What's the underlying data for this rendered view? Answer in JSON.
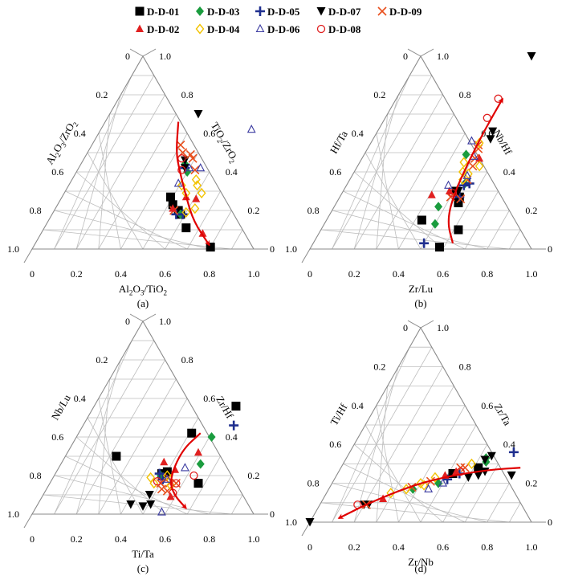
{
  "legend": {
    "entries": [
      {
        "name": "D-D-01",
        "marker": "square",
        "color": "#000000"
      },
      {
        "name": "D-D-03",
        "marker": "diamond",
        "color": "#1a9c3e"
      },
      {
        "name": "D-D-05",
        "marker": "plus",
        "color": "#1f2f8f"
      },
      {
        "name": "D-D-07",
        "marker": "triangle-down",
        "color": "#000000"
      },
      {
        "name": "D-D-09",
        "marker": "cross",
        "color": "#e8501e"
      },
      {
        "name": "D-D-02",
        "marker": "triangle",
        "color": "#e02020"
      },
      {
        "name": "D-D-04",
        "marker": "diamond-open",
        "color": "#f2c200"
      },
      {
        "name": "D-D-06",
        "marker": "triangle-open",
        "color": "#3a3aa0"
      },
      {
        "name": "D-D-08",
        "marker": "circle-open",
        "color": "#e02020"
      }
    ]
  },
  "chart_data": [
    {
      "type": "scatter",
      "panel": "(a)",
      "ternary": true,
      "bottom_label": "Al2O3/TiO2",
      "left_label": "Al2O3/ZrO2",
      "right_label": "TiO2/ZrO2",
      "bottom_ticks": [
        "0",
        "0.2",
        "0.4",
        "0.6",
        "0.8",
        "1.0"
      ],
      "left_ticks": [
        "0",
        "0.2",
        "0.4",
        "0.6",
        "0.8",
        "1.0"
      ],
      "right_ticks": [
        "1.0",
        "0.8",
        "0.6",
        "0.4",
        "0.2",
        "0"
      ],
      "points": [
        {
          "s": "D-D-01",
          "x": 0.52,
          "y": 0.23
        },
        {
          "s": "D-D-01",
          "x": 0.49,
          "y": 0.27
        },
        {
          "s": "D-D-01",
          "x": 0.58,
          "y": 0.18
        },
        {
          "s": "D-D-01",
          "x": 0.64,
          "y": 0.11
        },
        {
          "s": "D-D-01",
          "x": 0.8,
          "y": 0.01
        },
        {
          "s": "D-D-01",
          "x": 0.56,
          "y": 0.2
        },
        {
          "s": "D-D-03",
          "x": 0.5,
          "y": 0.4
        },
        {
          "s": "D-D-03",
          "x": 0.47,
          "y": 0.44
        },
        {
          "s": "D-D-03",
          "x": 0.58,
          "y": 0.18
        },
        {
          "s": "D-D-05",
          "x": 0.48,
          "y": 0.42
        },
        {
          "s": "D-D-05",
          "x": 0.56,
          "y": 0.18
        },
        {
          "s": "D-D-05",
          "x": 0.59,
          "y": 0.18
        },
        {
          "s": "D-D-07",
          "x": 0.4,
          "y": 0.7
        },
        {
          "s": "D-D-07",
          "x": 0.46,
          "y": 0.46
        },
        {
          "s": "D-D-07",
          "x": 0.48,
          "y": 0.42
        },
        {
          "s": "D-D-09",
          "x": 0.4,
          "y": 0.54
        },
        {
          "s": "D-D-09",
          "x": 0.43,
          "y": 0.5
        },
        {
          "s": "D-D-09",
          "x": 0.47,
          "y": 0.49
        },
        {
          "s": "D-D-09",
          "x": 0.53,
          "y": 0.41
        },
        {
          "s": "D-D-09",
          "x": 0.49,
          "y": 0.47
        },
        {
          "s": "D-D-09",
          "x": 0.54,
          "y": 0.2
        },
        {
          "s": "D-D-02",
          "x": 0.56,
          "y": 0.27
        },
        {
          "s": "D-D-02",
          "x": 0.53,
          "y": 0.21
        },
        {
          "s": "D-D-02",
          "x": 0.61,
          "y": 0.26
        },
        {
          "s": "D-D-02",
          "x": 0.73,
          "y": 0.08
        },
        {
          "s": "D-D-04",
          "x": 0.55,
          "y": 0.29
        },
        {
          "s": "D-D-04",
          "x": 0.62,
          "y": 0.29
        },
        {
          "s": "D-D-04",
          "x": 0.56,
          "y": 0.36
        },
        {
          "s": "D-D-04",
          "x": 0.51,
          "y": 0.33
        },
        {
          "s": "D-D-04",
          "x": 0.63,
          "y": 0.21
        },
        {
          "s": "D-D-04",
          "x": 0.6,
          "y": 0.19
        },
        {
          "s": "D-D-04",
          "x": 0.58,
          "y": 0.33
        },
        {
          "s": "D-D-06",
          "x": 0.5,
          "y": 0.42
        },
        {
          "s": "D-D-06",
          "x": 0.55,
          "y": 0.42
        },
        {
          "s": "D-D-06",
          "x": 0.68,
          "y": 0.62
        },
        {
          "s": "D-D-06",
          "x": 0.49,
          "y": 0.34
        },
        {
          "s": "D-D-08",
          "x": 0.44,
          "y": 0.47
        },
        {
          "s": "D-D-08",
          "x": 0.47,
          "y": 0.41
        }
      ],
      "trend": [
        [
          0.33,
          0.66
        ],
        [
          0.4,
          0.5
        ],
        [
          0.46,
          0.41
        ],
        [
          0.56,
          0.27
        ],
        [
          0.66,
          0.14
        ],
        [
          0.79,
          0.02
        ]
      ]
    },
    {
      "type": "scatter",
      "panel": "(b)",
      "ternary": true,
      "bottom_label": "Zr/Lu",
      "left_label": "Hf/Ta",
      "right_label": "Nb/Hf",
      "bottom_ticks": [
        "0",
        "0.2",
        "0.4",
        "0.6",
        "0.8",
        "1.0"
      ],
      "left_ticks": [
        "0",
        "0.2",
        "0.4",
        "0.6",
        "0.8",
        "1.0"
      ],
      "right_ticks": [
        "1.0",
        "0.8",
        "0.6",
        "0.4",
        "0.2",
        "0"
      ],
      "points": [
        {
          "s": "D-D-01",
          "x": 0.43,
          "y": 0.15
        },
        {
          "s": "D-D-01",
          "x": 0.55,
          "y": 0.24
        },
        {
          "s": "D-D-01",
          "x": 0.62,
          "y": 0.1
        },
        {
          "s": "D-D-01",
          "x": 0.58,
          "y": 0.01
        },
        {
          "s": "D-D-01",
          "x": 0.51,
          "y": 0.3
        },
        {
          "s": "D-D-01",
          "x": 0.54,
          "y": 0.27
        },
        {
          "s": "D-D-03",
          "x": 0.46,
          "y": 0.49
        },
        {
          "s": "D-D-03",
          "x": 0.5,
          "y": 0.13
        },
        {
          "s": "D-D-03",
          "x": 0.53,
          "y": 0.34
        },
        {
          "s": "D-D-03",
          "x": 0.47,
          "y": 0.22
        },
        {
          "s": "D-D-05",
          "x": 0.5,
          "y": 0.03
        },
        {
          "s": "D-D-05",
          "x": 0.55,
          "y": 0.34
        },
        {
          "s": "D-D-05",
          "x": 0.53,
          "y": 0.33
        },
        {
          "s": "D-D-05",
          "x": 0.54,
          "y": 0.27
        },
        {
          "s": "D-D-07",
          "x": 0.5,
          "y": 1.0
        },
        {
          "s": "D-D-07",
          "x": 0.52,
          "y": 0.61
        },
        {
          "s": "D-D-07",
          "x": 0.53,
          "y": 0.57
        },
        {
          "s": "D-D-07",
          "x": 0.52,
          "y": 0.3
        },
        {
          "s": "D-D-09",
          "x": 0.49,
          "y": 0.54
        },
        {
          "s": "D-D-09",
          "x": 0.5,
          "y": 0.52
        },
        {
          "s": "D-D-09",
          "x": 0.51,
          "y": 0.47
        },
        {
          "s": "D-D-09",
          "x": 0.52,
          "y": 0.43
        },
        {
          "s": "D-D-09",
          "x": 0.53,
          "y": 0.36
        },
        {
          "s": "D-D-09",
          "x": 0.55,
          "y": 0.26
        },
        {
          "s": "D-D-09",
          "x": 0.5,
          "y": 0.27
        },
        {
          "s": "D-D-02",
          "x": 0.41,
          "y": 0.28
        },
        {
          "s": "D-D-02",
          "x": 0.53,
          "y": 0.47
        },
        {
          "s": "D-D-02",
          "x": 0.48,
          "y": 0.3
        },
        {
          "s": "D-D-04",
          "x": 0.49,
          "y": 0.55
        },
        {
          "s": "D-D-04",
          "x": 0.47,
          "y": 0.45
        },
        {
          "s": "D-D-04",
          "x": 0.52,
          "y": 0.39
        },
        {
          "s": "D-D-04",
          "x": 0.49,
          "y": 0.4
        },
        {
          "s": "D-D-04",
          "x": 0.55,
          "y": 0.43
        },
        {
          "s": "D-D-04",
          "x": 0.51,
          "y": 0.36
        },
        {
          "s": "D-D-06",
          "x": 0.45,
          "y": 0.56
        },
        {
          "s": "D-D-06",
          "x": 0.5,
          "y": 0.48
        },
        {
          "s": "D-D-06",
          "x": 0.52,
          "y": 0.38
        },
        {
          "s": "D-D-06",
          "x": 0.46,
          "y": 0.33
        },
        {
          "s": "D-D-08",
          "x": 0.46,
          "y": 0.78
        },
        {
          "s": "D-D-08",
          "x": 0.46,
          "y": 0.68
        },
        {
          "s": "D-D-08",
          "x": 0.5,
          "y": 0.29
        }
      ],
      "trend": [
        [
          0.63,
          0.03
        ],
        [
          0.55,
          0.14
        ],
        [
          0.51,
          0.27
        ],
        [
          0.49,
          0.45
        ],
        [
          0.48,
          0.62
        ],
        [
          0.48,
          0.78
        ]
      ]
    },
    {
      "type": "scatter",
      "panel": "(c)",
      "ternary": true,
      "bottom_label": "Ti/Ta",
      "left_label": "Nb/Lu",
      "right_label": "Zr/Hf",
      "bottom_ticks": [
        "0",
        "0.2",
        "0.4",
        "0.6",
        "0.8",
        "1.0"
      ],
      "left_ticks": [
        "0",
        "0.2",
        "0.4",
        "0.6",
        "0.8",
        "1.0"
      ],
      "right_ticks": [
        "1.0",
        "0.8",
        "0.6",
        "0.4",
        "0.2",
        "0"
      ],
      "points": [
        {
          "s": "D-D-01",
          "x": 0.64,
          "y": 0.56
        },
        {
          "s": "D-D-01",
          "x": 0.51,
          "y": 0.42
        },
        {
          "s": "D-D-01",
          "x": 0.23,
          "y": 0.3
        },
        {
          "s": "D-D-01",
          "x": 0.5,
          "y": 0.22
        },
        {
          "s": "D-D-01",
          "x": 0.67,
          "y": 0.16
        },
        {
          "s": "D-D-01",
          "x": 0.48,
          "y": 0.21
        },
        {
          "s": "D-D-03",
          "x": 0.61,
          "y": 0.4
        },
        {
          "s": "D-D-03",
          "x": 0.63,
          "y": 0.26
        },
        {
          "s": "D-D-03",
          "x": 0.48,
          "y": 0.2
        },
        {
          "s": "D-D-05",
          "x": 0.68,
          "y": 0.46
        },
        {
          "s": "D-D-05",
          "x": 0.47,
          "y": 0.21
        },
        {
          "s": "D-D-05",
          "x": 0.5,
          "y": 0.18
        },
        {
          "s": "D-D-07",
          "x": 0.42,
          "y": 0.05
        },
        {
          "s": "D-D-07",
          "x": 0.48,
          "y": 0.04
        },
        {
          "s": "D-D-07",
          "x": 0.51,
          "y": 0.05
        },
        {
          "s": "D-D-07",
          "x": 0.48,
          "y": 0.1
        },
        {
          "s": "D-D-09",
          "x": 0.52,
          "y": 0.19
        },
        {
          "s": "D-D-09",
          "x": 0.54,
          "y": 0.16
        },
        {
          "s": "D-D-09",
          "x": 0.5,
          "y": 0.16
        },
        {
          "s": "D-D-09",
          "x": 0.55,
          "y": 0.12
        },
        {
          "s": "D-D-09",
          "x": 0.52,
          "y": 0.13
        },
        {
          "s": "D-D-09",
          "x": 0.57,
          "y": 0.16
        },
        {
          "s": "D-D-02",
          "x": 0.59,
          "y": 0.32
        },
        {
          "s": "D-D-02",
          "x": 0.46,
          "y": 0.27
        },
        {
          "s": "D-D-02",
          "x": 0.53,
          "y": 0.23
        },
        {
          "s": "D-D-02",
          "x": 0.58,
          "y": 0.09
        },
        {
          "s": "D-D-04",
          "x": 0.44,
          "y": 0.19
        },
        {
          "s": "D-D-04",
          "x": 0.47,
          "y": 0.16
        },
        {
          "s": "D-D-04",
          "x": 0.51,
          "y": 0.2
        },
        {
          "s": "D-D-04",
          "x": 0.55,
          "y": 0.15
        },
        {
          "s": "D-D-06",
          "x": 0.57,
          "y": 0.24
        },
        {
          "s": "D-D-06",
          "x": 0.52,
          "y": 0.18
        },
        {
          "s": "D-D-06",
          "x": 0.58,
          "y": 0.01
        },
        {
          "s": "D-D-08",
          "x": 0.57,
          "y": 0.16
        },
        {
          "s": "D-D-08",
          "x": 0.63,
          "y": 0.2
        },
        {
          "s": "D-D-08",
          "x": 0.58,
          "y": 0.11
        },
        {
          "s": "D-D-08",
          "x": 0.48,
          "y": 0.17
        }
      ],
      "trend": [
        [
          0.55,
          0.42
        ],
        [
          0.51,
          0.33
        ],
        [
          0.53,
          0.18
        ],
        [
          0.59,
          0.1
        ],
        [
          0.68,
          0.03
        ]
      ]
    },
    {
      "type": "scatter",
      "panel": "(d)",
      "ternary": true,
      "bottom_label": "Zr/Nb",
      "left_label": "Ti/Hf",
      "right_label": "Zr/Ta",
      "bottom_ticks": [
        "0",
        "0.2",
        "0.4",
        "0.6",
        "0.8",
        "1.0"
      ],
      "left_ticks": [
        "0",
        "0.2",
        "0.4",
        "0.6",
        "0.8",
        "1.0"
      ],
      "right_ticks": [
        "1.0",
        "0.8",
        "0.6",
        "0.4",
        "0.2",
        "0"
      ],
      "points": [
        {
          "s": "D-D-01",
          "x": 0.62,
          "y": 0.28
        },
        {
          "s": "D-D-01",
          "x": 0.52,
          "y": 0.25
        },
        {
          "s": "D-D-03",
          "x": 0.64,
          "y": 0.31
        },
        {
          "s": "D-D-03",
          "x": 0.63,
          "y": 0.33
        },
        {
          "s": "D-D-03",
          "x": 0.48,
          "y": 0.2
        },
        {
          "s": "D-D-03",
          "x": 0.38,
          "y": 0.17
        },
        {
          "s": "D-D-05",
          "x": 0.74,
          "y": 0.36
        },
        {
          "s": "D-D-05",
          "x": 0.51,
          "y": 0.22
        },
        {
          "s": "D-D-05",
          "x": 0.55,
          "y": 0.25
        },
        {
          "s": "D-D-07",
          "x": 0.0,
          "y": 0.0
        },
        {
          "s": "D-D-07",
          "x": 0.2,
          "y": 0.09
        },
        {
          "s": "D-D-07",
          "x": 0.22,
          "y": 0.09
        },
        {
          "s": "D-D-07",
          "x": 0.6,
          "y": 0.23
        },
        {
          "s": "D-D-07",
          "x": 0.64,
          "y": 0.24
        },
        {
          "s": "D-D-07",
          "x": 0.66,
          "y": 0.26
        },
        {
          "s": "D-D-07",
          "x": 0.79,
          "y": 0.24
        },
        {
          "s": "D-D-07",
          "x": 0.65,
          "y": 0.34
        },
        {
          "s": "D-D-07",
          "x": 0.63,
          "y": 0.32
        },
        {
          "s": "D-D-09",
          "x": 0.54,
          "y": 0.28
        },
        {
          "s": "D-D-09",
          "x": 0.56,
          "y": 0.28
        },
        {
          "s": "D-D-09",
          "x": 0.37,
          "y": 0.18
        },
        {
          "s": "D-D-09",
          "x": 0.44,
          "y": 0.21
        },
        {
          "s": "D-D-09",
          "x": 0.21,
          "y": 0.09
        },
        {
          "s": "D-D-02",
          "x": 0.27,
          "y": 0.12
        },
        {
          "s": "D-D-02",
          "x": 0.53,
          "y": 0.26
        },
        {
          "s": "D-D-02",
          "x": 0.49,
          "y": 0.24
        },
        {
          "s": "D-D-04",
          "x": 0.29,
          "y": 0.15
        },
        {
          "s": "D-D-04",
          "x": 0.4,
          "y": 0.2
        },
        {
          "s": "D-D-04",
          "x": 0.45,
          "y": 0.23
        },
        {
          "s": "D-D-04",
          "x": 0.58,
          "y": 0.3
        },
        {
          "s": "D-D-04",
          "x": 0.42,
          "y": 0.19
        },
        {
          "s": "D-D-04",
          "x": 0.35,
          "y": 0.17
        },
        {
          "s": "D-D-06",
          "x": 0.45,
          "y": 0.17
        },
        {
          "s": "D-D-06",
          "x": 0.5,
          "y": 0.2
        },
        {
          "s": "D-D-08",
          "x": 0.17,
          "y": 0.09
        },
        {
          "s": "D-D-08",
          "x": 0.55,
          "y": 0.26
        }
      ],
      "trend": [
        [
          0.81,
          0.28
        ],
        [
          0.68,
          0.27
        ],
        [
          0.52,
          0.24
        ],
        [
          0.37,
          0.19
        ],
        [
          0.22,
          0.1
        ],
        [
          0.12,
          0.02
        ]
      ]
    }
  ]
}
